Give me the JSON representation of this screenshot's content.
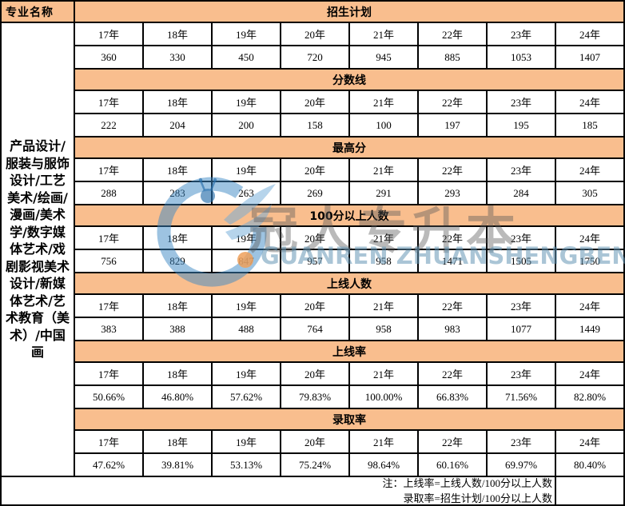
{
  "colors": {
    "band_bg": "#F9BE8E",
    "border": "#000000",
    "text": "#000000",
    "watermark_cn": "rgba(90,90,90,0.42)",
    "watermark_en": "rgba(100,150,180,0.55)",
    "watermark_blue": "rgba(60,135,195,0.50)",
    "watermark_dot": "rgba(238,160,90,0.85)"
  },
  "table": {
    "corner_header": "专业名称",
    "major_names": "产品设计/服装与服饰设计/工艺美术/绘画/漫画/美术学/数字媒体艺术/戏剧影视美术设计/新媒体艺术/艺术教育（美术）/中国画",
    "years": [
      "17年",
      "18年",
      "19年",
      "20年",
      "21年",
      "22年",
      "23年",
      "24年"
    ],
    "sections": [
      {
        "title": "招生计划",
        "values": [
          "360",
          "330",
          "450",
          "720",
          "945",
          "885",
          "1053",
          "1407"
        ]
      },
      {
        "title": "分数线",
        "values": [
          "222",
          "204",
          "200",
          "158",
          "100",
          "197",
          "195",
          "185"
        ]
      },
      {
        "title": "最高分",
        "values": [
          "288",
          "283",
          "263",
          "269",
          "291",
          "293",
          "284",
          "305"
        ]
      },
      {
        "title": "100分以上人数",
        "values": [
          "756",
          "829",
          "847",
          "957",
          "958",
          "1471",
          "1505",
          "1750"
        ]
      },
      {
        "title": "上线人数",
        "values": [
          "383",
          "388",
          "488",
          "764",
          "958",
          "983",
          "1077",
          "1449"
        ]
      },
      {
        "title": "上线率",
        "values": [
          "50.66%",
          "46.80%",
          "57.62%",
          "79.83%",
          "100.00%",
          "66.83%",
          "71.56%",
          "82.80%"
        ]
      },
      {
        "title": "录取率",
        "values": [
          "47.62%",
          "39.81%",
          "53.13%",
          "75.24%",
          "98.64%",
          "60.16%",
          "69.97%",
          "80.40%"
        ]
      }
    ],
    "note_lines": [
      "注：上线率=上线人数/100分以上人数",
      "录取率=招生计划/100分以上人数"
    ]
  },
  "watermark": {
    "cn": "冠人专升本",
    "en": "GUANREN ZHUANSHENGBEN"
  }
}
